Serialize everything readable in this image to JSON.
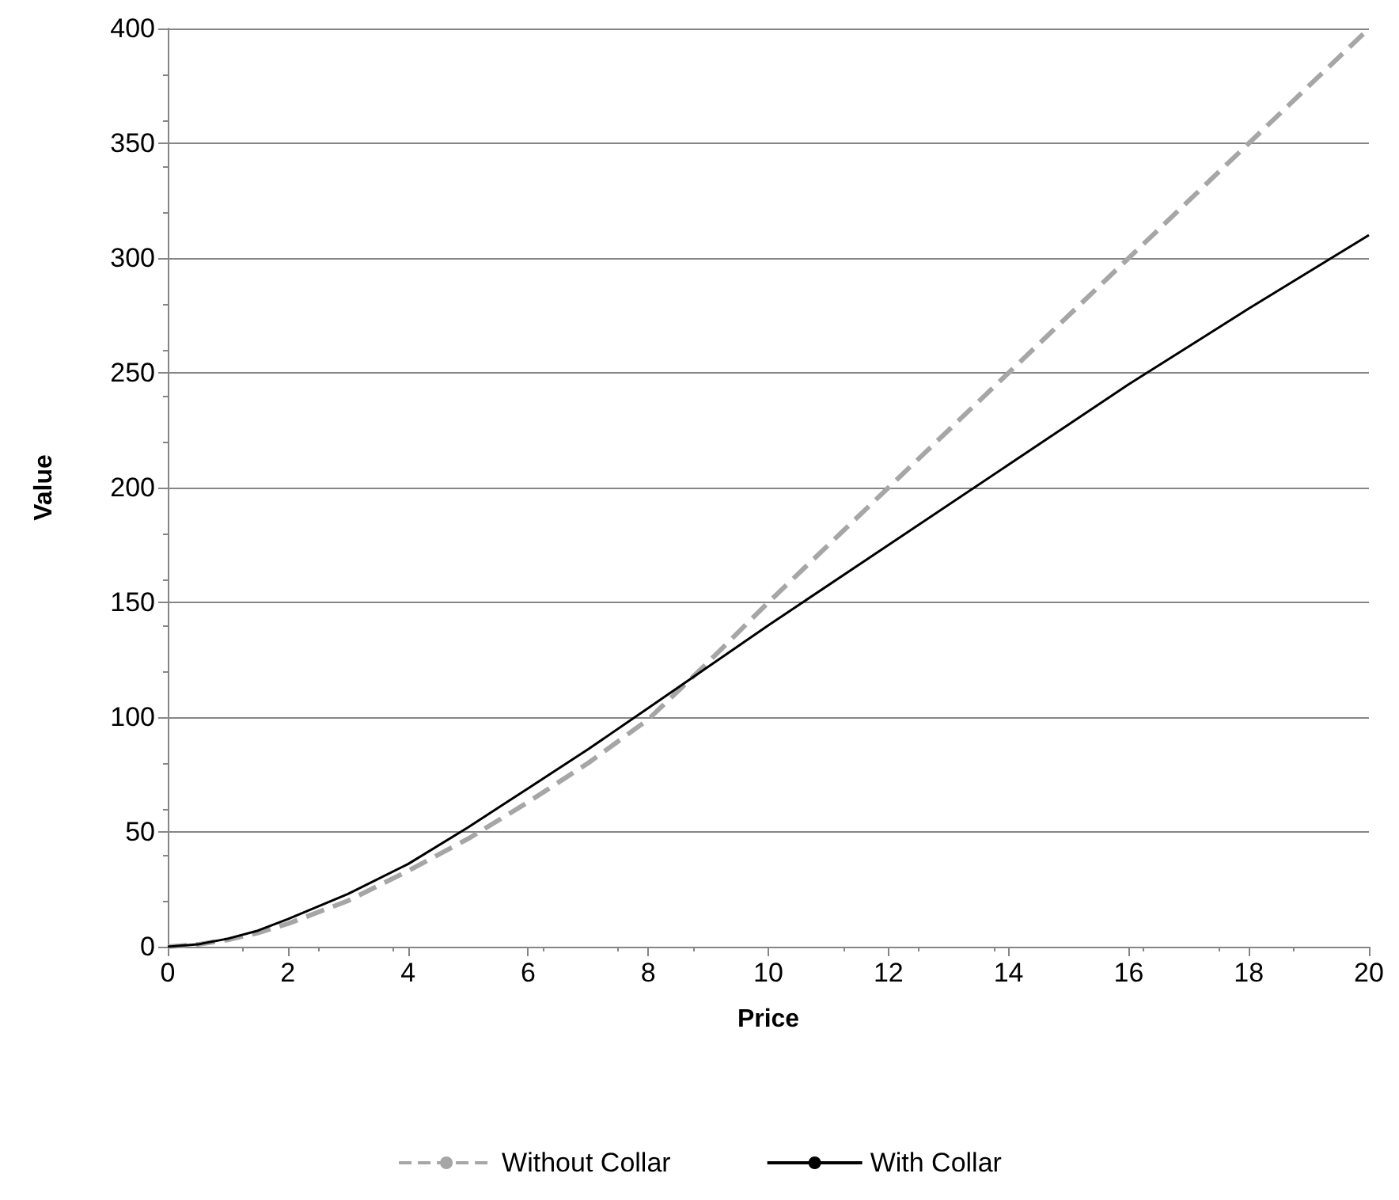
{
  "chart_data": {
    "type": "line",
    "xlabel": "Price",
    "ylabel": "Value",
    "xlim": [
      0,
      20
    ],
    "xticks": [
      0,
      2,
      4,
      6,
      8,
      10,
      12,
      14,
      16,
      18,
      20
    ],
    "ylim": [
      0,
      400
    ],
    "yticks": [
      0,
      50,
      100,
      150,
      200,
      250,
      300,
      350,
      400
    ],
    "grid": "y",
    "legend": "bottom",
    "marker": "none",
    "series": [
      {
        "name": "Without Collar",
        "color": "#a6a6a6",
        "line_style": "dashed",
        "x": [
          0,
          0.5,
          1,
          1.5,
          2,
          3,
          4,
          5,
          6,
          7,
          8,
          9,
          10,
          12,
          14,
          16,
          18,
          20
        ],
        "values": [
          0,
          1,
          3,
          6,
          10,
          20,
          33,
          47,
          63,
          80,
          99,
          124,
          150,
          200,
          250,
          300,
          350,
          400
        ]
      },
      {
        "name": "With Collar",
        "color": "#000000",
        "line_style": "solid",
        "x": [
          0,
          0.5,
          1,
          1.5,
          2,
          3,
          4,
          5,
          6,
          7,
          8,
          9,
          10,
          12,
          14,
          16,
          18,
          20
        ],
        "values": [
          0,
          1,
          3.5,
          7,
          12,
          23,
          36,
          52,
          69,
          86,
          104,
          122,
          140,
          175,
          210,
          245,
          278,
          310
        ]
      }
    ]
  }
}
